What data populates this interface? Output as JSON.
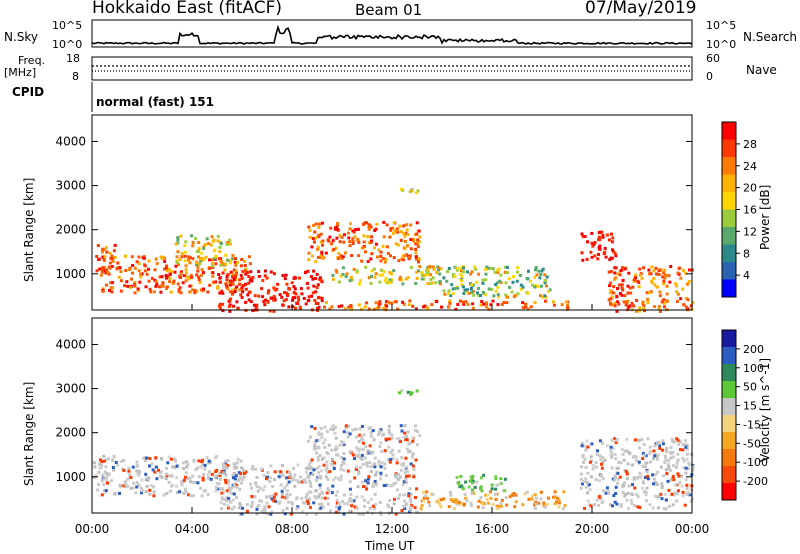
{
  "header": {
    "radar": "Hokkaido East (fitACF)",
    "beam": "Beam 01",
    "date": "07/May/2019"
  },
  "strip": {
    "nsky_label": "N.Sky",
    "nsky_ticks": [
      "10^5",
      "10^0"
    ],
    "nsearch_label": "N.Search",
    "nsearch_ticks": [
      "10^5",
      "10^0"
    ],
    "freq_label": "Freq.",
    "freq_unit": "[MHz]",
    "freq_ticks": [
      "18",
      "8"
    ],
    "nave_label": "Nave",
    "nave_ticks": [
      "60",
      "0"
    ],
    "cpid_label": "CPID",
    "cpid_value": "normal (fast) 151"
  },
  "chart_data": [
    {
      "type": "heatmap",
      "panel": "power",
      "ylabel": "Slant Range [km]",
      "y_ticks": [
        "4000",
        "3000",
        "2000",
        "1000"
      ],
      "ylim": [
        180,
        4600
      ],
      "colorbar_label": "Power [dB]",
      "colorbar_ticks": [
        "28",
        "24",
        "20",
        "16",
        "12",
        "8",
        "4"
      ],
      "colorbar_colors": [
        "#ff0000",
        "#ff3a00",
        "#ff7a00",
        "#ffb200",
        "#ffd400",
        "#9ccc3c",
        "#5aa86a",
        "#2e8a8a",
        "#2a64b0",
        "#0000ff"
      ],
      "regions": [
        {
          "t": [
            0.0,
            0.9
          ],
          "r": [
            1100,
            1700
          ],
          "level": "high"
        },
        {
          "t": [
            0.3,
            6.3
          ],
          "r": [
            600,
            1450
          ],
          "level": "high"
        },
        {
          "t": [
            3.3,
            5.6
          ],
          "r": [
            1200,
            1900
          ],
          "level": "mid"
        },
        {
          "t": [
            5.0,
            9.2
          ],
          "r": [
            180,
            1100
          ],
          "level": "max"
        },
        {
          "t": [
            8.6,
            13.1
          ],
          "r": [
            1300,
            2200
          ],
          "level": "high"
        },
        {
          "t": [
            9.5,
            14.0
          ],
          "r": [
            800,
            1200
          ],
          "level": "mid"
        },
        {
          "t": [
            12.2,
            13.0
          ],
          "r": [
            2800,
            3000
          ],
          "level": "mid"
        },
        {
          "t": [
            14.0,
            18.3
          ],
          "r": [
            500,
            1200
          ],
          "level": "low"
        },
        {
          "t": [
            9.0,
            19.0
          ],
          "r": [
            220,
            420
          ],
          "level": "high"
        },
        {
          "t": [
            19.5,
            20.9
          ],
          "r": [
            1300,
            2000
          ],
          "level": "max"
        },
        {
          "t": [
            20.6,
            24.0
          ],
          "r": [
            180,
            1200
          ],
          "level": "high"
        }
      ]
    },
    {
      "type": "heatmap",
      "panel": "velocity",
      "ylabel": "Slant Range [km]",
      "y_ticks": [
        "4000",
        "3000",
        "2000",
        "1000"
      ],
      "ylim": [
        180,
        4600
      ],
      "colorbar_label": "Velocity [m s^-1]",
      "colorbar_ticks": [
        "200",
        "100",
        "50",
        "15",
        "-15",
        "-50",
        "-100",
        "-200"
      ],
      "colorbar_colors": [
        "#1a1aa0",
        "#2b5cc0",
        "#2e8a5a",
        "#5cc838",
        "#c8c8c8",
        "#f2d27a",
        "#f5a623",
        "#f57a0e",
        "#f54a0a",
        "#ff0000"
      ],
      "regions": [
        {
          "t": [
            0.0,
            6.0
          ],
          "r": [
            600,
            1500
          ],
          "level": "gray"
        },
        {
          "t": [
            5.0,
            13.0
          ],
          "r": [
            180,
            1300
          ],
          "level": "gray"
        },
        {
          "t": [
            8.6,
            13.1
          ],
          "r": [
            1300,
            2200
          ],
          "level": "gray"
        },
        {
          "t": [
            12.2,
            13.0
          ],
          "r": [
            2800,
            3000
          ],
          "level": "green"
        },
        {
          "t": [
            14.5,
            16.5
          ],
          "r": [
            700,
            1100
          ],
          "level": "green"
        },
        {
          "t": [
            13.0,
            19.0
          ],
          "r": [
            300,
            700
          ],
          "level": "orange"
        },
        {
          "t": [
            19.5,
            24.0
          ],
          "r": [
            300,
            1900
          ],
          "level": "gray"
        }
      ]
    }
  ],
  "x_axis": {
    "ticks": [
      "00:00",
      "04:00",
      "08:00",
      "12:00",
      "16:00",
      "20:00",
      "00:00"
    ],
    "label": "Time UT"
  }
}
